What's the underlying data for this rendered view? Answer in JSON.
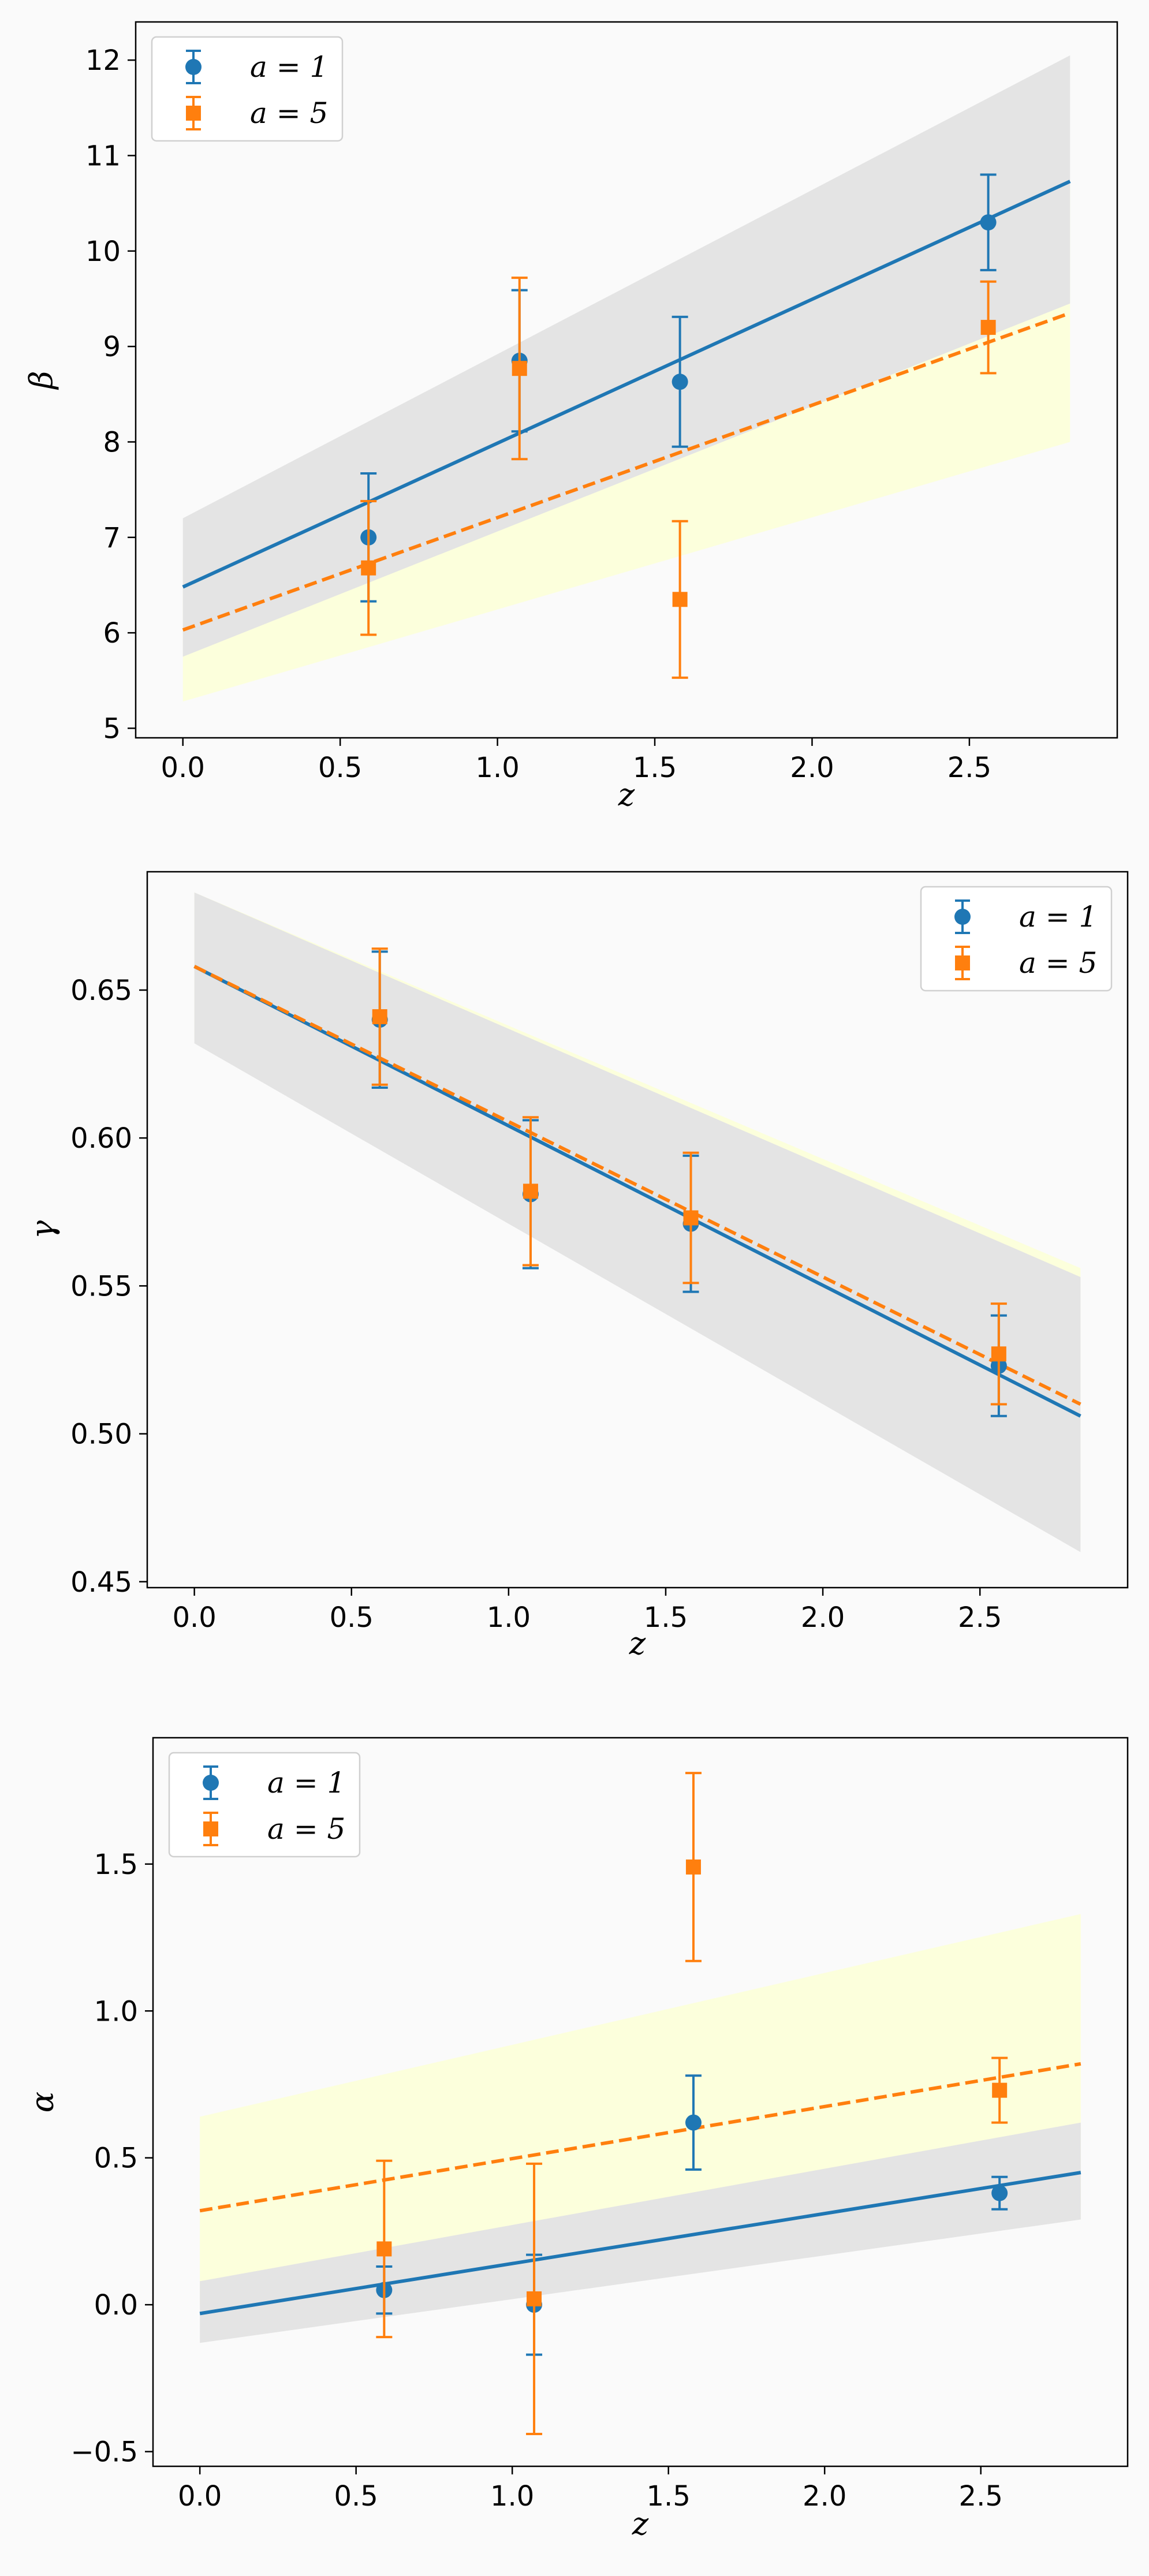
{
  "figure": {
    "background": "#fafafa",
    "colors": {
      "a1": "#1f77b4",
      "a5": "#ff7f0e",
      "band_a1": "#e4e4e4",
      "band_a5": "#fcffdc"
    }
  },
  "chart_data": [
    {
      "type": "scatter",
      "panel": "beta",
      "xlabel": "z",
      "ylabel": "β",
      "xlim": [
        -0.15,
        2.97
      ],
      "ylim": [
        4.9,
        12.4
      ],
      "xticks": [
        0.0,
        0.5,
        1.0,
        1.5,
        2.0,
        2.5
      ],
      "xtick_labels": [
        "0.0",
        "0.5",
        "1.0",
        "1.5",
        "2.0",
        "2.5"
      ],
      "yticks": [
        5,
        6,
        7,
        8,
        9,
        10,
        11,
        12
      ],
      "ytick_labels": [
        "5",
        "6",
        "7",
        "8",
        "9",
        "10",
        "11",
        "12"
      ],
      "legend_position": "upper-left",
      "series": [
        {
          "name": "a = 1",
          "marker": "circle",
          "color": "#1f77b4",
          "linestyle": "solid",
          "points": [
            {
              "x": 0.59,
              "y": 7.0,
              "err": 0.67
            },
            {
              "x": 1.07,
              "y": 8.85,
              "err": 0.74
            },
            {
              "x": 1.58,
              "y": 8.63,
              "err": 0.68
            },
            {
              "x": 2.56,
              "y": 10.3,
              "err": 0.5
            }
          ],
          "fit": {
            "x": [
              0.0,
              2.82
            ],
            "y": [
              6.48,
              10.73
            ]
          },
          "band": {
            "x": [
              0.0,
              2.82
            ],
            "lower": [
              5.75,
              9.45
            ],
            "upper": [
              7.2,
              12.05
            ]
          }
        },
        {
          "name": "a = 5",
          "marker": "square",
          "color": "#ff7f0e",
          "linestyle": "dashed",
          "points": [
            {
              "x": 0.59,
              "y": 6.68,
              "err": 0.7
            },
            {
              "x": 1.07,
              "y": 8.77,
              "err": 0.95
            },
            {
              "x": 1.58,
              "y": 6.35,
              "err": 0.82
            },
            {
              "x": 2.56,
              "y": 9.2,
              "err": 0.48
            }
          ],
          "fit": {
            "x": [
              0.0,
              2.82
            ],
            "y": [
              6.03,
              9.35
            ]
          },
          "band": {
            "x": [
              0.0,
              2.82
            ],
            "lower": [
              5.28,
              8.0
            ],
            "upper": [
              6.78,
              10.7
            ]
          }
        }
      ]
    },
    {
      "type": "scatter",
      "panel": "gamma",
      "xlabel": "z",
      "ylabel": "γ",
      "xlim": [
        -0.15,
        2.97
      ],
      "ylim": [
        0.448,
        0.69
      ],
      "xticks": [
        0.0,
        0.5,
        1.0,
        1.5,
        2.0,
        2.5
      ],
      "xtick_labels": [
        "0.0",
        "0.5",
        "1.0",
        "1.5",
        "2.0",
        "2.5"
      ],
      "yticks": [
        0.45,
        0.5,
        0.55,
        0.6,
        0.65
      ],
      "ytick_labels": [
        "0.45",
        "0.50",
        "0.55",
        "0.60",
        "0.65"
      ],
      "legend_position": "upper-right",
      "series": [
        {
          "name": "a = 1",
          "marker": "circle",
          "color": "#1f77b4",
          "linestyle": "solid",
          "points": [
            {
              "x": 0.59,
              "y": 0.64,
              "err": 0.023
            },
            {
              "x": 1.07,
              "y": 0.581,
              "err": 0.025
            },
            {
              "x": 1.58,
              "y": 0.571,
              "err": 0.023
            },
            {
              "x": 2.56,
              "y": 0.523,
              "err": 0.017
            }
          ],
          "fit": {
            "x": [
              0.0,
              2.82
            ],
            "y": [
              0.658,
              0.506
            ]
          },
          "band": {
            "x": [
              0.0,
              2.82
            ],
            "lower": [
              0.632,
              0.46
            ],
            "upper": [
              0.683,
              0.553
            ]
          }
        },
        {
          "name": "a = 5",
          "marker": "square",
          "color": "#ff7f0e",
          "linestyle": "dashed",
          "points": [
            {
              "x": 0.59,
              "y": 0.641,
              "err": 0.023
            },
            {
              "x": 1.07,
              "y": 0.582,
              "err": 0.025
            },
            {
              "x": 1.58,
              "y": 0.573,
              "err": 0.022
            },
            {
              "x": 2.56,
              "y": 0.527,
              "err": 0.017
            }
          ],
          "fit": {
            "x": [
              0.0,
              2.82
            ],
            "y": [
              0.658,
              0.51
            ]
          },
          "band": {
            "x": [
              0.0,
              2.82
            ],
            "lower": [
              0.633,
              0.465
            ],
            "upper": [
              0.683,
              0.556
            ]
          }
        }
      ]
    },
    {
      "type": "scatter",
      "panel": "alpha",
      "xlabel": "z",
      "ylabel": "α",
      "xlim": [
        -0.15,
        2.97
      ],
      "ylim": [
        -0.55,
        1.93
      ],
      "xticks": [
        0.0,
        0.5,
        1.0,
        1.5,
        2.0,
        2.5
      ],
      "xtick_labels": [
        "0.0",
        "0.5",
        "1.0",
        "1.5",
        "2.0",
        "2.5"
      ],
      "yticks": [
        -0.5,
        0.0,
        0.5,
        1.0,
        1.5
      ],
      "ytick_labels": [
        "−0.5",
        "0.0",
        "0.5",
        "1.0",
        "1.5"
      ],
      "legend_position": "upper-left",
      "series": [
        {
          "name": "a = 1",
          "marker": "circle",
          "color": "#1f77b4",
          "linestyle": "solid",
          "points": [
            {
              "x": 0.59,
              "y": 0.05,
              "err": 0.08
            },
            {
              "x": 1.07,
              "y": 0.0,
              "err": 0.17
            },
            {
              "x": 1.58,
              "y": 0.62,
              "err": 0.16
            },
            {
              "x": 2.56,
              "y": 0.38,
              "err": 0.055
            }
          ],
          "fit": {
            "x": [
              0.0,
              2.82
            ],
            "y": [
              -0.03,
              0.45
            ]
          },
          "band": {
            "x": [
              0.0,
              2.82
            ],
            "lower": [
              -0.13,
              0.29
            ],
            "upper": [
              0.08,
              0.62
            ]
          }
        },
        {
          "name": "a = 5",
          "marker": "square",
          "color": "#ff7f0e",
          "linestyle": "dashed",
          "points": [
            {
              "x": 0.59,
              "y": 0.19,
              "err": 0.3
            },
            {
              "x": 1.07,
              "y": 0.02,
              "err": 0.46
            },
            {
              "x": 1.58,
              "y": 1.49,
              "err": 0.32
            },
            {
              "x": 2.56,
              "y": 0.73,
              "err": 0.11
            }
          ],
          "fit": {
            "x": [
              0.0,
              2.82
            ],
            "y": [
              0.32,
              0.82
            ]
          },
          "band": {
            "x": [
              0.0,
              2.82
            ],
            "lower": [
              0.0,
              0.29
            ],
            "upper": [
              0.64,
              1.33
            ]
          }
        }
      ]
    }
  ]
}
